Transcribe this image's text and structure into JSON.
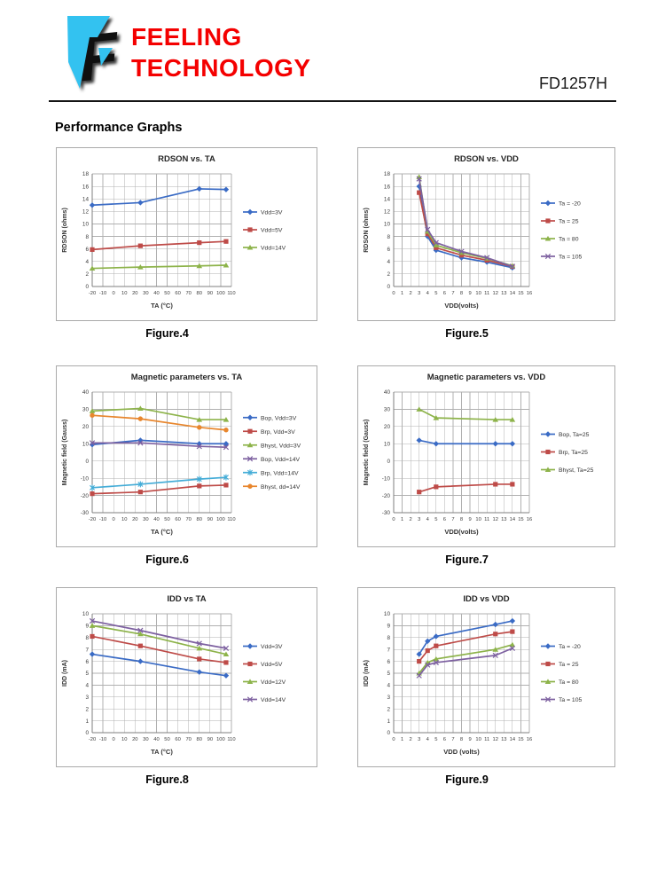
{
  "page": {
    "brand_line1": "FEELING",
    "brand_line2": "TECHNOLOGY",
    "part_number": "FD1257H",
    "section_title": "Performance Graphs",
    "logo_icon": "feeling-technology-flag-logo",
    "colors": {
      "brand_red": "#f40000",
      "logo_cyan": "#33C2F0"
    }
  },
  "figures": [
    {
      "caption": "Figure.4"
    },
    {
      "caption": "Figure.5"
    },
    {
      "caption": "Figure.6"
    },
    {
      "caption": "Figure.7"
    },
    {
      "caption": "Figure.8"
    },
    {
      "caption": "Figure.9"
    }
  ],
  "chart_data": [
    {
      "type": "line",
      "title": "RDSON vs. TA",
      "xlabel": "TA (°C)",
      "ylabel": "RDSON (ohms)",
      "x": [
        -20,
        25,
        80,
        105
      ],
      "xlim": [
        -20,
        110
      ],
      "xstep": 10,
      "ylim": [
        0,
        18
      ],
      "ystep": 2,
      "grid": true,
      "legend_position": "right",
      "series": [
        {
          "name": "Vdd=3V",
          "color": "#3A6BC5",
          "marker": "diamond",
          "values": [
            13.0,
            13.4,
            15.6,
            15.5
          ]
        },
        {
          "name": "Vdd=5V",
          "color": "#BE4B48",
          "marker": "square",
          "values": [
            5.9,
            6.5,
            7.0,
            7.2
          ]
        },
        {
          "name": "Vdd=14V",
          "color": "#8DB34A",
          "marker": "triangle",
          "values": [
            2.9,
            3.1,
            3.3,
            3.4
          ]
        }
      ]
    },
    {
      "type": "line",
      "title": "RDSON vs. VDD",
      "xlabel": "VDD(volts)",
      "ylabel": "RDSON (ohms)",
      "x": [
        3,
        4,
        5,
        8,
        11,
        14
      ],
      "xlim": [
        0,
        16
      ],
      "xstep": 1,
      "ylim": [
        0,
        18
      ],
      "ystep": 2,
      "grid": true,
      "legend_position": "right",
      "series": [
        {
          "name": "Ta = -20",
          "color": "#3A6BC5",
          "marker": "diamond",
          "values": [
            16.0,
            8.0,
            5.8,
            4.6,
            3.9,
            3.0
          ]
        },
        {
          "name": "Ta = 25",
          "color": "#BE4B48",
          "marker": "square",
          "values": [
            15.0,
            8.4,
            6.2,
            5.0,
            4.2,
            3.2
          ]
        },
        {
          "name": "Ta = 80",
          "color": "#8DB34A",
          "marker": "triangle",
          "values": [
            17.5,
            8.8,
            6.6,
            5.4,
            4.5,
            3.3
          ]
        },
        {
          "name": "Ta = 105",
          "color": "#7D60A0",
          "marker": "x",
          "values": [
            17.2,
            9.1,
            7.0,
            5.6,
            4.6,
            3.2
          ]
        }
      ]
    },
    {
      "type": "line",
      "title": "Magnetic parameters vs. TA",
      "xlabel": "TA (°C)",
      "ylabel": "Magnetic field (Gauss)",
      "x": [
        -20,
        25,
        80,
        105
      ],
      "xlim": [
        -20,
        110
      ],
      "xstep": 10,
      "ylim": [
        -30,
        40
      ],
      "ystep": 10,
      "grid": true,
      "legend_position": "right",
      "series": [
        {
          "name": "Bop, Vdd=3V",
          "color": "#3A6BC5",
          "marker": "diamond",
          "values": [
            9.5,
            12.0,
            10.0,
            10.0
          ]
        },
        {
          "name": "Brp, Vdd=3V",
          "color": "#BE4B48",
          "marker": "square",
          "values": [
            -19.0,
            -18.0,
            -14.5,
            -14.0
          ]
        },
        {
          "name": "Bhyst, Vdd=3V",
          "color": "#8DB34A",
          "marker": "triangle",
          "values": [
            29.0,
            30.5,
            24.0,
            24.0
          ]
        },
        {
          "name": "Bop, Vdd=14V",
          "color": "#7D60A0",
          "marker": "x",
          "values": [
            10.5,
            10.5,
            8.5,
            8.0
          ]
        },
        {
          "name": "Brp, Vdd=14V",
          "color": "#43ACD7",
          "marker": "asterisk",
          "values": [
            -15.5,
            -13.5,
            -10.5,
            -9.5
          ]
        },
        {
          "name": "Bhyst, dd=14V",
          "color": "#E8862D",
          "marker": "circle",
          "values": [
            26.5,
            24.5,
            19.5,
            18.0
          ]
        }
      ]
    },
    {
      "type": "line",
      "title": "Magnetic parameters vs. VDD",
      "xlabel": "VDD(volts)",
      "ylabel": "Magnetic field (Gauss)",
      "x": [
        3,
        5,
        12,
        14
      ],
      "xlim": [
        0,
        16
      ],
      "xstep": 1,
      "ylim": [
        -30,
        40
      ],
      "ystep": 10,
      "grid": true,
      "legend_position": "right",
      "series": [
        {
          "name": "Bop, Ta=25",
          "color": "#3A6BC5",
          "marker": "diamond",
          "values": [
            12.0,
            10.0,
            10.0,
            10.0
          ]
        },
        {
          "name": "Brp, Ta=25",
          "color": "#BE4B48",
          "marker": "square",
          "values": [
            -18.0,
            -15.0,
            -13.5,
            -13.5
          ]
        },
        {
          "name": "Bhyst, Ta=25",
          "color": "#8DB34A",
          "marker": "triangle",
          "values": [
            30.0,
            25.0,
            24.0,
            24.0
          ]
        }
      ]
    },
    {
      "type": "line",
      "title": "IDD vs TA",
      "xlabel": "TA (°C)",
      "ylabel": "IDD (mA)",
      "x": [
        -20,
        25,
        80,
        105
      ],
      "xlim": [
        -20,
        110
      ],
      "xstep": 10,
      "ylim": [
        0,
        10
      ],
      "ystep": 1,
      "grid": true,
      "legend_position": "right",
      "series": [
        {
          "name": "Vdd=3V",
          "color": "#3A6BC5",
          "marker": "diamond",
          "values": [
            6.6,
            6.0,
            5.1,
            4.8
          ]
        },
        {
          "name": "Vdd=5V",
          "color": "#BE4B48",
          "marker": "square",
          "values": [
            8.1,
            7.3,
            6.2,
            5.9
          ]
        },
        {
          "name": "Vdd=12V",
          "color": "#8DB34A",
          "marker": "triangle",
          "values": [
            9.0,
            8.3,
            7.1,
            6.6
          ]
        },
        {
          "name": "Vdd=14V",
          "color": "#7D60A0",
          "marker": "x",
          "values": [
            9.4,
            8.6,
            7.5,
            7.1
          ]
        }
      ]
    },
    {
      "type": "line",
      "title": "IDD vs VDD",
      "xlabel": "VDD (volts)",
      "ylabel": "IDD (mA)",
      "x": [
        3,
        4,
        5,
        12,
        14
      ],
      "xlim": [
        0,
        16
      ],
      "xstep": 1,
      "ylim": [
        0,
        10
      ],
      "ystep": 1,
      "grid": true,
      "legend_position": "right",
      "series": [
        {
          "name": "Ta = -20",
          "color": "#3A6BC5",
          "marker": "diamond",
          "values": [
            6.6,
            7.7,
            8.1,
            9.1,
            9.4
          ]
        },
        {
          "name": "Ta = 25",
          "color": "#BE4B48",
          "marker": "square",
          "values": [
            6.0,
            6.9,
            7.3,
            8.3,
            8.5
          ]
        },
        {
          "name": "Ta = 80",
          "color": "#8DB34A",
          "marker": "triangle",
          "values": [
            5.0,
            5.9,
            6.2,
            7.0,
            7.4
          ]
        },
        {
          "name": "Ta = 105",
          "color": "#7D60A0",
          "marker": "x",
          "values": [
            4.8,
            5.7,
            5.9,
            6.5,
            7.1
          ]
        }
      ]
    }
  ]
}
